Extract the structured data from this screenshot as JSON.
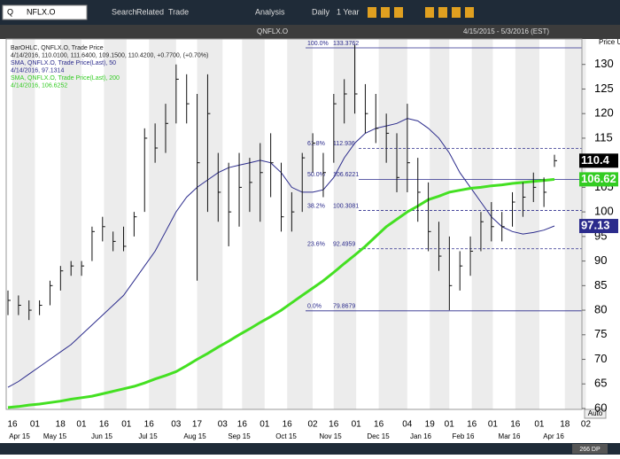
{
  "toolbar": {
    "search_prefix": "Q",
    "symbol": "NFLX.O",
    "search": "Search",
    "related": "Related",
    "trade": "Trade",
    "analysis": "Analysis",
    "interval": "Daily",
    "range": "1 Year"
  },
  "chart_data": {
    "type": "ohlc",
    "title": "QNFLX.O",
    "date_range": "4/15/2015 - 5/3/2016 (EST)",
    "axis_label": "Price USD",
    "legend": [
      "BarOHLC, QNFLX.O, Trade Price",
      "4/14/2016, 110.0100, 111.6400, 109.1500, 110.4200, +0.7700, (+0.70%)",
      "SMA, QNFLX.O, Trade Price(Last), 50",
      "4/14/2016, 97.1314",
      "SMA, QNFLX.O, Trade Price(Last), 200",
      "4/14/2016, 106.6252"
    ],
    "legend_colors": [
      "#222222",
      "#222222",
      "#2b2b8c",
      "#2b2b8c",
      "#33cc22",
      "#33cc22"
    ],
    "categories": [
      null,
      null,
      null,
      null,
      null,
      null,
      null,
      null,
      null,
      null,
      null,
      null,
      null,
      null,
      null,
      null,
      null,
      null,
      null,
      null,
      null,
      null,
      null,
      null,
      null,
      null,
      null,
      null,
      null,
      null,
      null,
      null,
      null,
      null,
      null,
      null,
      null,
      null,
      null,
      null,
      null,
      null,
      null,
      null,
      null,
      null,
      null,
      null,
      null,
      null,
      null,
      null,
      null
    ],
    "bars": {
      "color": "#111111",
      "high": [
        84,
        83,
        82,
        82,
        86,
        89,
        90,
        90,
        97,
        99,
        96,
        97,
        100,
        117,
        118,
        122,
        130,
        128,
        124,
        128,
        112,
        110,
        112,
        111,
        114,
        116,
        110,
        104,
        112,
        116,
        112,
        124,
        127,
        134,
        126,
        124,
        120,
        116,
        122,
        111,
        106,
        98,
        95,
        92,
        95,
        100,
        102,
        100,
        104,
        106,
        108,
        107,
        111.64
      ],
      "low": [
        79,
        79,
        78,
        79,
        81,
        84,
        87,
        87,
        90,
        94,
        92,
        92,
        95,
        100,
        110,
        112,
        118,
        118,
        86,
        100,
        98,
        93,
        97,
        100,
        98,
        103,
        96,
        96,
        100,
        108,
        103,
        110,
        118,
        120,
        116,
        114,
        110,
        104,
        104,
        98,
        92,
        88,
        80,
        84,
        87,
        92,
        94,
        94,
        97,
        99,
        102,
        101,
        109.15
      ],
      "close": [
        82,
        81,
        80,
        81,
        85,
        88,
        89,
        89,
        96,
        97,
        94,
        93,
        99,
        115,
        113,
        118,
        127,
        122,
        110,
        120,
        104,
        100,
        105,
        106,
        108,
        110,
        99,
        100,
        111,
        114,
        108,
        122,
        124,
        124,
        120,
        117,
        116,
        107,
        110,
        104,
        96,
        91,
        85,
        89,
        92,
        98,
        97,
        97,
        102,
        103,
        105,
        104,
        110.42
      ]
    },
    "sma": [
      {
        "color": "#2b2b8c",
        "values": [
          64.3,
          65.5,
          67,
          68.5,
          70,
          71.5,
          73,
          75,
          77,
          79,
          81,
          83,
          86,
          89,
          92,
          96,
          100,
          103,
          105,
          106.5,
          108,
          109,
          109.5,
          110,
          110.5,
          110,
          108,
          105,
          104,
          104,
          104.5,
          107,
          111,
          114,
          116,
          117,
          117.5,
          118,
          119,
          118.5,
          117,
          115,
          112,
          108,
          105,
          102,
          99,
          97,
          96,
          95.5,
          95.8,
          96.3,
          97.1314
        ]
      },
      {
        "color": "#44e022",
        "values": [
          60.2,
          60.4,
          60.7,
          60.9,
          61.2,
          61.5,
          61.9,
          62.2,
          62.5,
          63,
          63.5,
          64,
          64.5,
          65.2,
          66,
          66.7,
          67.5,
          68.7,
          70,
          71.2,
          72.5,
          73.7,
          75,
          76.2,
          77.5,
          78.7,
          80,
          81.5,
          83,
          84.5,
          86,
          87.7,
          89.5,
          91.2,
          93,
          95,
          97,
          98.5,
          100,
          101.2,
          102.5,
          103.2,
          104,
          104.4,
          104.8,
          105,
          105.3,
          105.5,
          105.8,
          106,
          106.2,
          106.4,
          106.6252
        ]
      }
    ],
    "markers": [
      {
        "value": 110.42,
        "label": "110.4",
        "color": "#000000"
      },
      {
        "value": 106.6252,
        "label": "106.62",
        "color": "#33cc22"
      },
      {
        "value": 97.1314,
        "label": "97.13",
        "color": "#2b2b8c"
      }
    ],
    "fib_levels": [
      {
        "pct": "100.0%",
        "value": 133.3762
      },
      {
        "pct": "61.8%",
        "value": 112.936
      },
      {
        "pct": "50.0%",
        "value": 106.6221
      },
      {
        "pct": "38.2%",
        "value": 100.3081
      },
      {
        "pct": "23.6%",
        "value": 92.4959
      },
      {
        "pct": "0.0%",
        "value": 79.8679
      }
    ],
    "ylim": [
      60,
      135
    ],
    "yticks": [
      60,
      65,
      70,
      75,
      80,
      85,
      90,
      95,
      100,
      105,
      110,
      115,
      120,
      125,
      130
    ],
    "x_day_labels": [
      "16",
      "01",
      "18",
      "01",
      "16",
      "01",
      "16",
      "03",
      "17",
      "03",
      "16",
      "01",
      "16",
      "02",
      "16",
      "01",
      "16",
      "04",
      "19",
      "01",
      "16",
      "01",
      "16",
      "01",
      "18",
      "02"
    ],
    "x_month_labels": [
      "Apr 15",
      "May 15",
      "Jun 15",
      "Jul 15",
      "Aug 15",
      "Sep 15",
      "Oct 15",
      "Nov 15",
      "Dec 15",
      "Jan 16",
      "Feb 16",
      "Mar 16",
      "Apr 16"
    ],
    "grid": true
  },
  "footer": {
    "points": "266 DP",
    "scale": "Auto"
  }
}
